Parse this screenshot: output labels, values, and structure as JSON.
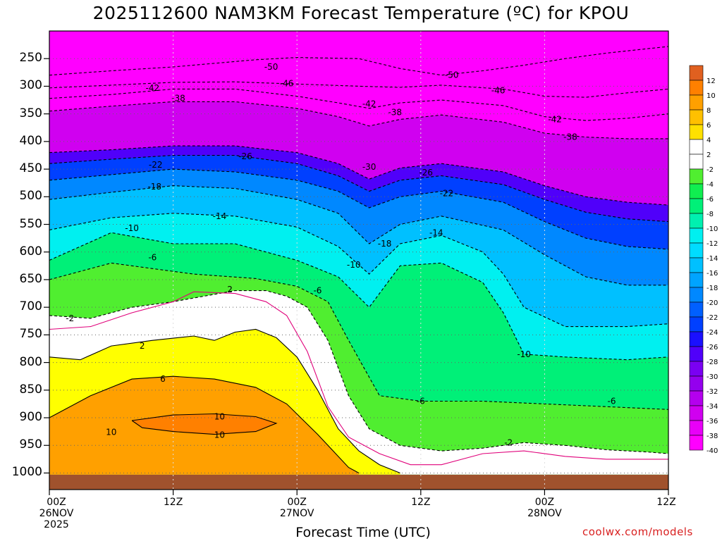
{
  "chart_data": {
    "type": "contour",
    "title": "2025112600 NAM3KM Forecast Temperature (ºC) for KPOU",
    "model_run": "2025112600",
    "model": "NAM3KM",
    "station": "KPOU",
    "xlabel": "Forecast Time (UTC)",
    "ylabel": "",
    "x_ticks": [
      {
        "hour": 0,
        "lines": [
          "00Z",
          "26NOV",
          "2025"
        ]
      },
      {
        "hour": 12,
        "lines": [
          "12Z"
        ]
      },
      {
        "hour": 24,
        "lines": [
          "00Z",
          "27NOV"
        ]
      },
      {
        "hour": 36,
        "lines": [
          "12Z"
        ]
      },
      {
        "hour": 48,
        "lines": [
          "00Z",
          "28NOV"
        ]
      },
      {
        "hour": 60,
        "lines": [
          "12Z"
        ]
      }
    ],
    "xlim": [
      0,
      60
    ],
    "y_ticks": [
      250,
      300,
      350,
      400,
      450,
      500,
      550,
      600,
      650,
      700,
      750,
      800,
      850,
      900,
      950,
      1000
    ],
    "ylim_hpa": [
      1030,
      200
    ],
    "ground_hpa": 1003,
    "colorbar": {
      "levels": [
        -40,
        -38,
        -36,
        -34,
        -32,
        -30,
        -28,
        -26,
        -24,
        -22,
        -20,
        -18,
        -16,
        -14,
        -12,
        -10,
        -8,
        -6,
        -4,
        -2,
        2,
        4,
        6,
        8,
        10,
        12
      ],
      "colors": [
        "#ff00ff",
        "#e800f8",
        "#d000f0",
        "#b400ee",
        "#9400ee",
        "#7a00f2",
        "#5000fa",
        "#1a10ff",
        "#0040ff",
        "#0060ff",
        "#0088ff",
        "#00a4ff",
        "#00c0ff",
        "#00dcff",
        "#00f0f0",
        "#00f0b0",
        "#00f078",
        "#10ee50",
        "#50ee30",
        "#ffffff",
        "#ffff00",
        "#ffe000",
        "#ffc000",
        "#ffa000",
        "#ff8000",
        "#f06000"
      ],
      "band_order_top_to_bottom": [
        12,
        10,
        8,
        6,
        4,
        2,
        -2,
        -4,
        -6,
        -8,
        -10,
        -12,
        -14,
        -16,
        -18,
        -20,
        -22,
        -24,
        -26,
        -28,
        -30,
        -32,
        -34,
        -36,
        -38,
        -40
      ]
    },
    "contours": [
      {
        "level": -50,
        "style": "dashed",
        "points": [
          [
            0,
            280
          ],
          [
            6,
            272
          ],
          [
            12,
            265
          ],
          [
            20,
            252
          ],
          [
            24,
            248
          ],
          [
            30,
            250
          ],
          [
            34,
            268
          ],
          [
            38,
            280
          ],
          [
            42,
            272
          ],
          [
            46,
            262
          ],
          [
            50,
            250
          ],
          [
            54,
            240
          ],
          [
            58,
            232
          ],
          [
            60,
            228
          ]
        ]
      },
      {
        "level": -46,
        "style": "dashed",
        "points": [
          [
            0,
            303
          ],
          [
            6,
            298
          ],
          [
            12,
            293
          ],
          [
            18,
            292
          ],
          [
            24,
            296
          ],
          [
            30,
            300
          ],
          [
            34,
            302
          ],
          [
            38,
            298
          ],
          [
            44,
            305
          ],
          [
            48,
            318
          ],
          [
            52,
            320
          ],
          [
            56,
            312
          ],
          [
            60,
            305
          ]
        ]
      },
      {
        "level": -42,
        "style": "dashed",
        "points": [
          [
            0,
            322
          ],
          [
            6,
            315
          ],
          [
            12,
            305
          ],
          [
            18,
            305
          ],
          [
            24,
            318
          ],
          [
            28,
            330
          ],
          [
            31,
            340
          ],
          [
            34,
            330
          ],
          [
            38,
            325
          ],
          [
            44,
            335
          ],
          [
            48,
            355
          ],
          [
            52,
            362
          ],
          [
            56,
            358
          ],
          [
            60,
            350
          ]
        ]
      },
      {
        "level": -38,
        "style": "dashed",
        "points": [
          [
            0,
            345
          ],
          [
            6,
            336
          ],
          [
            12,
            328
          ],
          [
            18,
            328
          ],
          [
            24,
            340
          ],
          [
            28,
            355
          ],
          [
            31,
            372
          ],
          [
            34,
            360
          ],
          [
            38,
            352
          ],
          [
            44,
            365
          ],
          [
            48,
            385
          ],
          [
            52,
            392
          ],
          [
            56,
            395
          ],
          [
            60,
            395
          ]
        ]
      },
      {
        "level": -30,
        "style": "dashed",
        "points": [
          [
            0,
            420
          ],
          [
            6,
            415
          ],
          [
            12,
            408
          ],
          [
            18,
            408
          ],
          [
            24,
            420
          ],
          [
            28,
            440
          ],
          [
            31,
            468
          ],
          [
            34,
            448
          ],
          [
            38,
            440
          ],
          [
            44,
            455
          ],
          [
            48,
            480
          ],
          [
            52,
            500
          ],
          [
            56,
            510
          ],
          [
            60,
            515
          ]
        ]
      },
      {
        "level": -26,
        "style": "dashed",
        "points": [
          [
            0,
            440
          ],
          [
            6,
            432
          ],
          [
            12,
            425
          ],
          [
            18,
            425
          ],
          [
            24,
            440
          ],
          [
            28,
            462
          ],
          [
            31,
            490
          ],
          [
            34,
            470
          ],
          [
            38,
            462
          ],
          [
            44,
            478
          ],
          [
            48,
            505
          ],
          [
            52,
            528
          ],
          [
            56,
            540
          ],
          [
            60,
            545
          ]
        ]
      },
      {
        "level": -22,
        "style": "dashed",
        "points": [
          [
            0,
            470
          ],
          [
            6,
            460
          ],
          [
            12,
            450
          ],
          [
            18,
            455
          ],
          [
            24,
            470
          ],
          [
            28,
            490
          ],
          [
            31,
            520
          ],
          [
            34,
            500
          ],
          [
            38,
            490
          ],
          [
            44,
            510
          ],
          [
            48,
            545
          ],
          [
            52,
            575
          ],
          [
            56,
            590
          ],
          [
            60,
            595
          ]
        ]
      },
      {
        "level": -18,
        "style": "dashed",
        "points": [
          [
            0,
            505
          ],
          [
            6,
            492
          ],
          [
            12,
            480
          ],
          [
            18,
            485
          ],
          [
            24,
            505
          ],
          [
            28,
            530
          ],
          [
            31,
            585
          ],
          [
            34,
            550
          ],
          [
            38,
            535
          ],
          [
            44,
            560
          ],
          [
            48,
            605
          ],
          [
            52,
            645
          ],
          [
            56,
            660
          ],
          [
            60,
            660
          ]
        ]
      },
      {
        "level": -14,
        "style": "dashed",
        "points": [
          [
            0,
            560
          ],
          [
            6,
            538
          ],
          [
            12,
            530
          ],
          [
            18,
            535
          ],
          [
            24,
            555
          ],
          [
            28,
            590
          ],
          [
            31,
            640
          ],
          [
            34,
            585
          ],
          [
            38,
            570
          ],
          [
            42,
            600
          ],
          [
            44,
            640
          ],
          [
            46,
            700
          ],
          [
            50,
            735
          ],
          [
            56,
            735
          ],
          [
            60,
            730
          ]
        ]
      },
      {
        "level": -10,
        "style": "dashed",
        "points": [
          [
            0,
            615
          ],
          [
            6,
            565
          ],
          [
            12,
            585
          ],
          [
            18,
            585
          ],
          [
            24,
            615
          ],
          [
            28,
            645
          ],
          [
            31,
            700
          ],
          [
            34,
            625
          ],
          [
            38,
            620
          ],
          [
            42,
            655
          ],
          [
            44,
            710
          ],
          [
            46,
            785
          ],
          [
            50,
            790
          ],
          [
            56,
            795
          ],
          [
            60,
            790
          ]
        ]
      },
      {
        "level": -6,
        "style": "dashed",
        "points": [
          [
            0,
            650
          ],
          [
            6,
            620
          ],
          [
            10,
            630
          ],
          [
            14,
            640
          ],
          [
            20,
            648
          ],
          [
            24,
            662
          ],
          [
            27,
            690
          ],
          [
            29,
            760
          ],
          [
            32,
            860
          ],
          [
            36,
            870
          ],
          [
            42,
            870
          ],
          [
            48,
            875
          ],
          [
            54,
            880
          ],
          [
            60,
            885
          ]
        ]
      },
      {
        "level": -2,
        "style": "dashed",
        "points": [
          [
            0,
            715
          ],
          [
            4,
            720
          ],
          [
            8,
            700
          ],
          [
            12,
            690
          ],
          [
            18,
            670
          ],
          [
            21,
            670
          ],
          [
            23,
            680
          ],
          [
            25,
            700
          ],
          [
            27,
            760
          ],
          [
            29,
            860
          ],
          [
            31,
            920
          ],
          [
            34,
            950
          ],
          [
            38,
            960
          ],
          [
            42,
            955
          ],
          [
            46,
            945
          ],
          [
            50,
            950
          ],
          [
            54,
            958
          ],
          [
            58,
            962
          ],
          [
            60,
            965
          ]
        ]
      },
      {
        "level": 0,
        "style": "solid-magenta",
        "points": [
          [
            0,
            740
          ],
          [
            4,
            735
          ],
          [
            8,
            710
          ],
          [
            12,
            690
          ],
          [
            14,
            672
          ],
          [
            18,
            675
          ],
          [
            21,
            690
          ],
          [
            23,
            715
          ],
          [
            25,
            780
          ],
          [
            27,
            880
          ],
          [
            29,
            935
          ],
          [
            32,
            965
          ],
          [
            35,
            985
          ],
          [
            38,
            985
          ],
          [
            42,
            965
          ],
          [
            46,
            960
          ],
          [
            50,
            970
          ],
          [
            54,
            975
          ],
          [
            58,
            975
          ],
          [
            60,
            975
          ]
        ]
      },
      {
        "level": 2,
        "style": "solid",
        "points": [
          [
            0,
            790
          ],
          [
            3,
            795
          ],
          [
            6,
            770
          ],
          [
            10,
            760
          ],
          [
            14,
            752
          ],
          [
            16,
            760
          ],
          [
            18,
            745
          ],
          [
            20,
            740
          ],
          [
            22,
            755
          ],
          [
            24,
            790
          ],
          [
            26,
            850
          ],
          [
            28,
            920
          ],
          [
            30,
            960
          ],
          [
            32,
            985
          ],
          [
            34,
            1000
          ]
        ]
      },
      {
        "level": 6,
        "style": "solid",
        "points": [
          [
            0,
            900
          ],
          [
            4,
            860
          ],
          [
            8,
            830
          ],
          [
            12,
            825
          ],
          [
            16,
            830
          ],
          [
            20,
            845
          ],
          [
            23,
            875
          ],
          [
            26,
            930
          ],
          [
            29,
            990
          ],
          [
            30,
            1000
          ]
        ]
      },
      {
        "level": 10,
        "style": "solid",
        "points": [
          [
            8,
            905
          ],
          [
            12,
            895
          ],
          [
            16,
            893
          ],
          [
            20,
            898
          ],
          [
            22,
            910
          ],
          [
            20,
            925
          ],
          [
            16,
            930
          ],
          [
            12,
            925
          ],
          [
            9,
            918
          ],
          [
            8,
            905
          ]
        ]
      }
    ],
    "contour_labels": [
      {
        "text": "-50",
        "hour": 21.5,
        "hpa": 265
      },
      {
        "text": "-50",
        "hour": 39,
        "hpa": 280
      },
      {
        "text": "-46",
        "hour": 23,
        "hpa": 295
      },
      {
        "text": "-46",
        "hour": 43.5,
        "hpa": 308
      },
      {
        "text": "-42",
        "hour": 10,
        "hpa": 303
      },
      {
        "text": "-42",
        "hour": 31,
        "hpa": 332
      },
      {
        "text": "-42",
        "hour": 49,
        "hpa": 360
      },
      {
        "text": "-38",
        "hour": 12.5,
        "hpa": 322
      },
      {
        "text": "-38",
        "hour": 33.5,
        "hpa": 347
      },
      {
        "text": "-38",
        "hour": 50.5,
        "hpa": 392
      },
      {
        "text": "-30",
        "hour": 31,
        "hpa": 446
      },
      {
        "text": "-26",
        "hour": 19,
        "hpa": 427
      },
      {
        "text": "-26",
        "hour": 36.5,
        "hpa": 456
      },
      {
        "text": "-22",
        "hour": 10.3,
        "hpa": 442
      },
      {
        "text": "-22",
        "hour": 38.5,
        "hpa": 494
      },
      {
        "text": "-18",
        "hour": 10.2,
        "hpa": 482
      },
      {
        "text": "-18",
        "hour": 32.5,
        "hpa": 585
      },
      {
        "text": "-14",
        "hour": 16.5,
        "hpa": 535
      },
      {
        "text": "-14",
        "hour": 37.5,
        "hpa": 565
      },
      {
        "text": "-10",
        "hour": 8,
        "hpa": 557
      },
      {
        "text": "-10",
        "hour": 29.5,
        "hpa": 623
      },
      {
        "text": "-10",
        "hour": 46,
        "hpa": 785
      },
      {
        "text": "-6",
        "hour": 10,
        "hpa": 610
      },
      {
        "text": "-6",
        "hour": 26,
        "hpa": 670
      },
      {
        "text": "-6",
        "hour": 36,
        "hpa": 870
      },
      {
        "text": "-6",
        "hour": 54.5,
        "hpa": 870
      },
      {
        "text": "-2",
        "hour": 2,
        "hpa": 720
      },
      {
        "text": "-2",
        "hour": 44.5,
        "hpa": 945
      },
      {
        "text": "2",
        "hour": 17.5,
        "hpa": 668
      },
      {
        "text": "2",
        "hour": 9,
        "hpa": 770
      },
      {
        "text": "6",
        "hour": 11,
        "hpa": 830
      },
      {
        "text": "10",
        "hour": 16.5,
        "hpa": 898
      },
      {
        "text": "10",
        "hour": 16.5,
        "hpa": 931
      },
      {
        "text": "10",
        "hour": 6,
        "hpa": 926
      }
    ]
  },
  "watermark": "coolwx.com/models"
}
